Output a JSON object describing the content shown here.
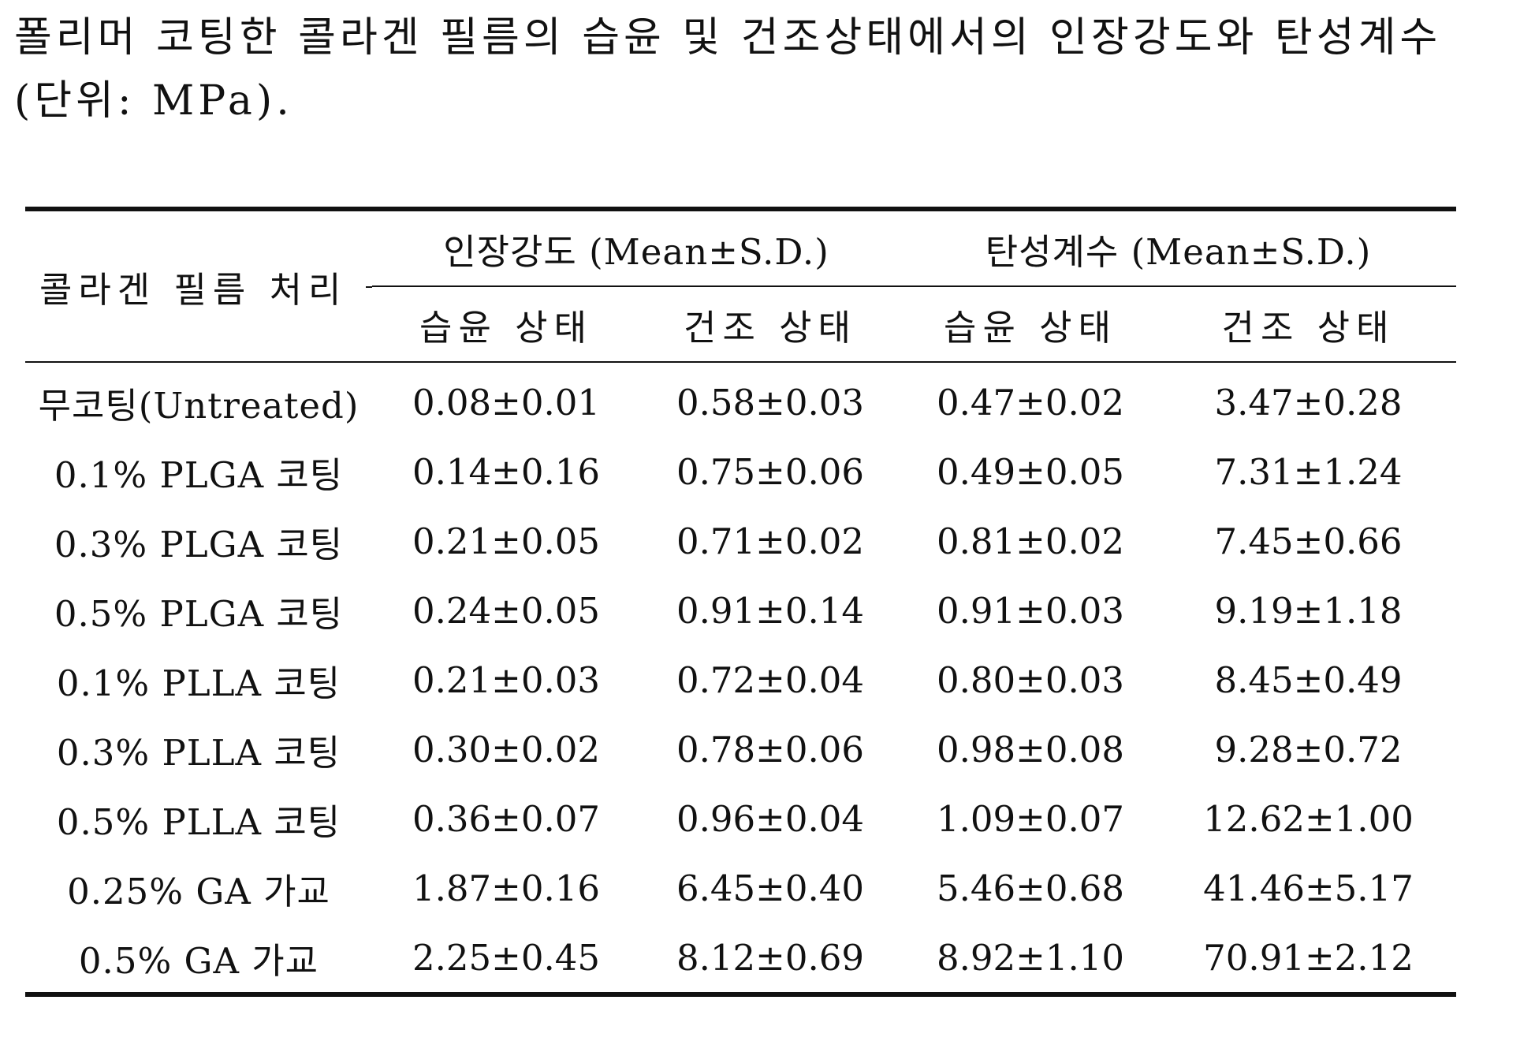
{
  "caption": {
    "line1": "폴리머 코팅한 콜라겐 필름의 습윤 및 건조상태에서의 인장강도와 탄성계수",
    "line2": "(단위: MPa)."
  },
  "table": {
    "row_header": "콜라겐 필름 처리",
    "groups": [
      "인장강도 (Mean±S.D.)",
      "탄성계수 (Mean±S.D.)"
    ],
    "subheaders": [
      "습윤 상태",
      "건조 상태",
      "습윤 상태",
      "건조 상태"
    ],
    "rows": [
      {
        "label": "무코팅(Untreated)",
        "values": [
          "0.08±0.01",
          "0.58±0.03",
          "0.47±0.02",
          "3.47±0.28"
        ]
      },
      {
        "label": "0.1% PLGA 코팅",
        "values": [
          "0.14±0.16",
          "0.75±0.06",
          "0.49±0.05",
          "7.31±1.24"
        ]
      },
      {
        "label": "0.3% PLGA 코팅",
        "values": [
          "0.21±0.05",
          "0.71±0.02",
          "0.81±0.02",
          "7.45±0.66"
        ]
      },
      {
        "label": "0.5% PLGA 코팅",
        "values": [
          "0.24±0.05",
          "0.91±0.14",
          "0.91±0.03",
          "9.19±1.18"
        ]
      },
      {
        "label": "0.1% PLLA 코팅",
        "values": [
          "0.21±0.03",
          "0.72±0.04",
          "0.80±0.03",
          "8.45±0.49"
        ]
      },
      {
        "label": "0.3% PLLA 코팅",
        "values": [
          "0.30±0.02",
          "0.78±0.06",
          "0.98±0.08",
          "9.28±0.72"
        ]
      },
      {
        "label": "0.5% PLLA 코팅",
        "values": [
          "0.36±0.07",
          "0.96±0.04",
          "1.09±0.07",
          "12.62±1.00"
        ]
      },
      {
        "label": "0.25% GA 가교",
        "values": [
          "1.87±0.16",
          "6.45±0.40",
          "5.46±0.68",
          "41.46±5.17"
        ]
      },
      {
        "label": "0.5% GA 가교",
        "values": [
          "2.25±0.45",
          "8.12±0.69",
          "8.92±1.10",
          "70.91±2.12"
        ]
      }
    ]
  }
}
